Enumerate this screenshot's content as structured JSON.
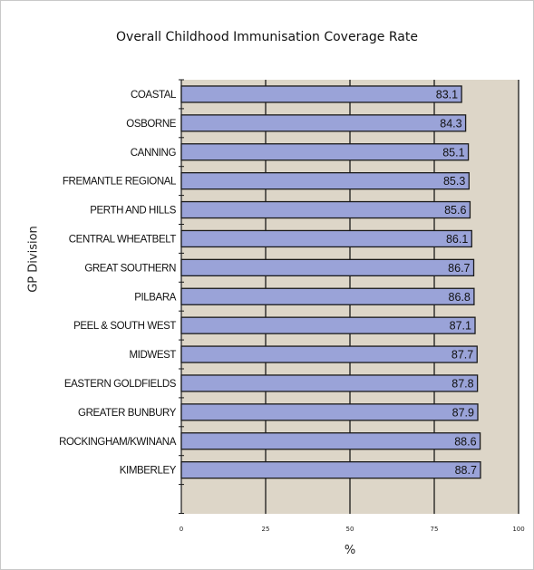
{
  "chart_data": {
    "type": "bar",
    "orientation": "horizontal",
    "title": "Overall Childhood Immunisation Coverage Rate",
    "xlabel": "%",
    "ylabel": "GP Division",
    "xlim": [
      0,
      100
    ],
    "xticks": [
      "0",
      "25",
      "50",
      "75",
      "100"
    ],
    "grid": true,
    "categories": [
      "COASTAL",
      "OSBORNE",
      "CANNING",
      "FREMANTLE REGIONAL",
      "PERTH AND HILLS",
      "CENTRAL WHEATBELT",
      "GREAT SOUTHERN",
      "PILBARA",
      "PEEL & SOUTH WEST",
      "MIDWEST",
      "EASTERN GOLDFIELDS",
      "GREATER BUNBURY",
      "ROCKINGHAM/KWINANA",
      "KIMBERLEY"
    ],
    "values": [
      83.1,
      84.3,
      85.1,
      85.3,
      85.6,
      86.1,
      86.7,
      86.8,
      87.1,
      87.7,
      87.8,
      87.9,
      88.6,
      88.7
    ],
    "value_labels": [
      "83.1",
      "84.3",
      "85.1",
      "85.3",
      "85.6",
      "86.1",
      "86.7",
      "86.8",
      "87.1",
      "87.7",
      "87.8",
      "87.9",
      "88.6",
      "88.7"
    ],
    "colors": {
      "bar_fill": "#9aa3d8",
      "bar_stroke": "#1a1a1a",
      "plot_bg": "#ddd6c8",
      "grid": "#1a1a1a"
    }
  }
}
